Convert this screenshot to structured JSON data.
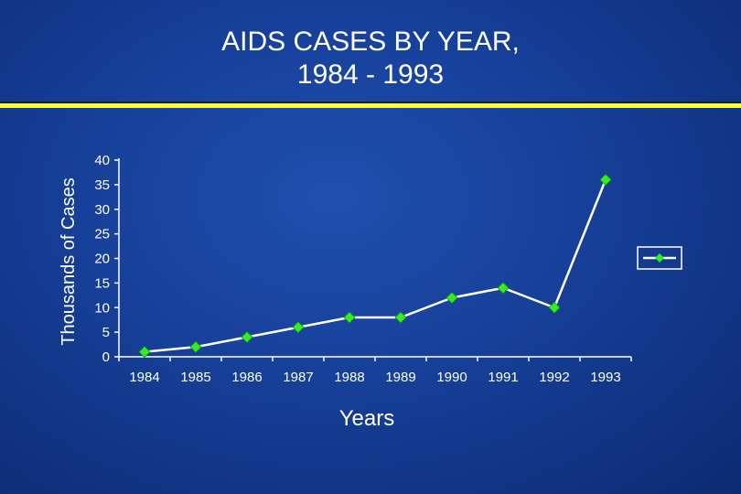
{
  "chart_data": {
    "type": "line",
    "title_lines": [
      "AIDS CASES BY YEAR,",
      "1984 - 1993"
    ],
    "xlabel": "Years",
    "ylabel": "Thousands of Cases",
    "categories": [
      "1984",
      "1985",
      "1986",
      "1987",
      "1988",
      "1989",
      "1990",
      "1991",
      "1992",
      "1993"
    ],
    "series": [
      {
        "values": [
          1,
          2,
          4,
          6,
          8,
          8,
          12,
          14,
          10,
          36
        ]
      }
    ],
    "ylim": [
      0,
      40
    ],
    "yticks": [
      0,
      5,
      10,
      15,
      20,
      25,
      30,
      35,
      40
    ],
    "grid": false,
    "legend_position": "right",
    "colors": {
      "line": "#ffffff",
      "marker": "#33ee22",
      "axis": "#ffffff",
      "rule": "#ffff33"
    }
  }
}
